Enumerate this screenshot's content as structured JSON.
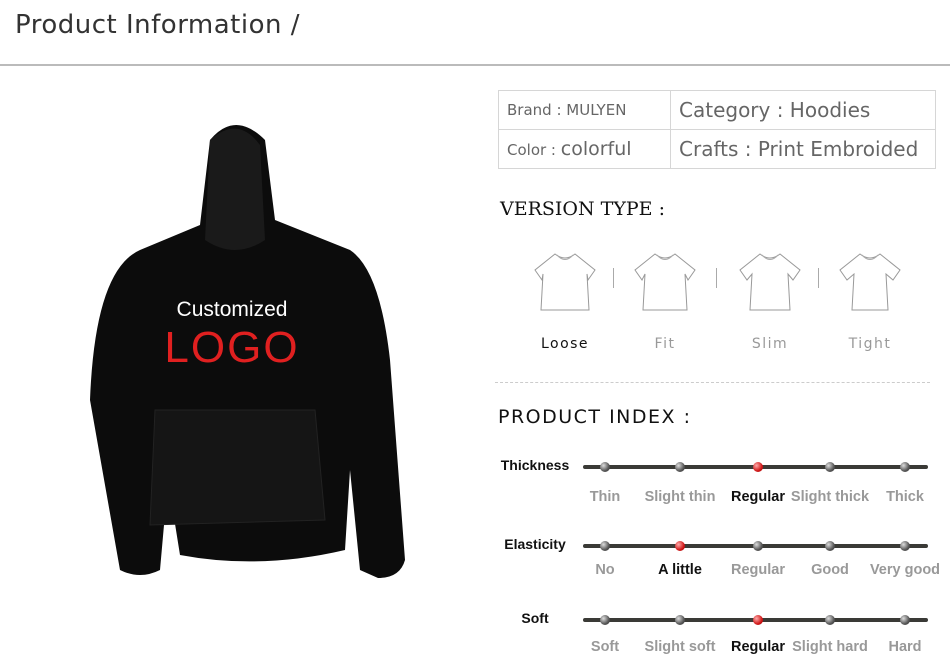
{
  "header": {
    "title": "Product Information /"
  },
  "specs": {
    "brand": "Brand : MULYEN",
    "category": "Category : Hoodies",
    "color_label": "Color : ",
    "color_value": "colorful",
    "crafts": "Crafts : Print Embroided"
  },
  "product_image": {
    "line1": "Customized",
    "line2": "LOGO",
    "logo_color": "#e02020"
  },
  "version_type": {
    "title": "VERSION TYPE :",
    "options": [
      {
        "label": "Loose",
        "selected": true
      },
      {
        "label": "Fit",
        "selected": false
      },
      {
        "label": "Slim",
        "selected": false
      },
      {
        "label": "Tight",
        "selected": false
      }
    ]
  },
  "product_index": {
    "title": "PRODUCT  INDEX :",
    "rows": [
      {
        "label": "Thickness",
        "options": [
          "Thin",
          "Slight thin",
          "Regular",
          "Slight thick",
          "Thick"
        ],
        "selected": 2
      },
      {
        "label": "Elasticity",
        "options": [
          "No",
          "A little",
          "Regular",
          "Good",
          "Very good"
        ],
        "selected": 1
      },
      {
        "label": "Soft",
        "options": [
          "Soft",
          "Slight soft",
          "Regular",
          "Slight hard",
          "Hard"
        ],
        "selected": 2
      }
    ]
  },
  "colors": {
    "selected_dot": "#d01818",
    "track": "#3a3a36"
  }
}
